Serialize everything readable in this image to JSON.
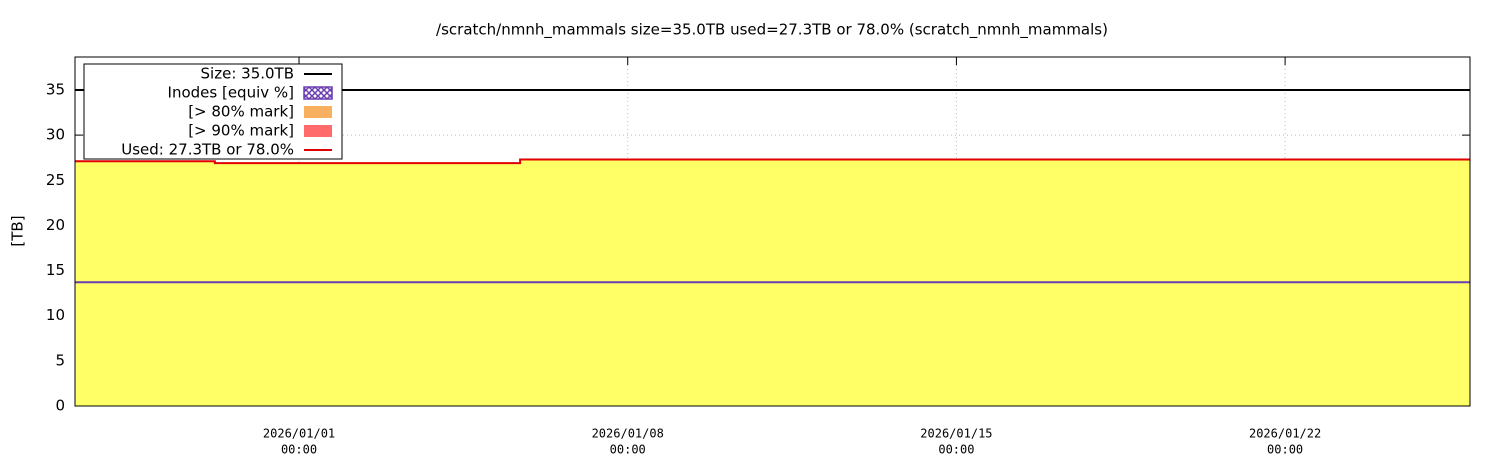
{
  "chart_data": {
    "type": "line",
    "title": "/scratch/nmnh_mammals size=35.0TB used=27.3TB or 78.0% (scratch_nmnh_mammals)",
    "y_label": "[TB]",
    "x": [
      "2025/12/27 05:30",
      "2025/12/30 05:00",
      "2025/12/30 05:00",
      "2026/01/05 17:00",
      "2026/01/05 17:00",
      "2026/01/25 22:30"
    ],
    "xlim": [
      "2025/12/27 05:30",
      "2026/01/25 22:30"
    ],
    "xticks": [
      {
        "value": "2026/01/01 00:00",
        "label": [
          "2026/01/01",
          "00:00"
        ]
      },
      {
        "value": "2026/01/08 00:00",
        "label": [
          "2026/01/08",
          "00:00"
        ]
      },
      {
        "value": "2026/01/15 00:00",
        "label": [
          "2026/01/15",
          "00:00"
        ]
      },
      {
        "value": "2026/01/22 00:00",
        "label": [
          "2026/01/22",
          "00:00"
        ]
      }
    ],
    "ylim": [
      0,
      38.65
    ],
    "yticks": [
      0,
      5,
      10,
      15,
      20,
      25,
      30,
      35
    ],
    "grid": true,
    "legend": "upper left",
    "series": [
      {
        "name": "Size: 35.0TB",
        "color": "#000000",
        "style": "line",
        "values": [
          35,
          35,
          35,
          35,
          35,
          35
        ]
      },
      {
        "name": "Inodes [equiv %]",
        "color": "#6a3db0",
        "style": "hatch",
        "values": [
          13.7,
          13.7,
          13.7,
          13.7,
          13.7,
          13.7
        ]
      },
      {
        "name": "[> 80% mark]",
        "color": "#f8b060",
        "style": "patch",
        "values": [
          null,
          null,
          null,
          null,
          null,
          null
        ]
      },
      {
        "name": "[> 90% mark]",
        "color": "#ff6a6a",
        "style": "patch",
        "values": [
          null,
          null,
          null,
          null,
          null,
          null
        ]
      },
      {
        "name": "Used: 27.3TB or 78.0%",
        "color": "#e00000",
        "style": "line",
        "fill": "#ffff66",
        "values": [
          27.1,
          27.1,
          26.9,
          26.9,
          27.3,
          27.3
        ]
      }
    ]
  }
}
